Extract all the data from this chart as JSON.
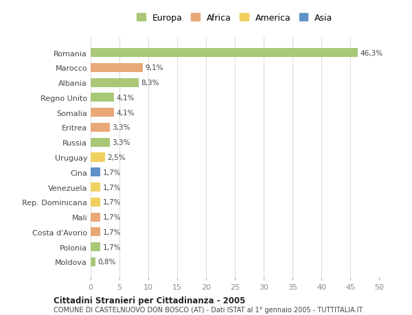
{
  "categories": [
    "Moldova",
    "Polonia",
    "Costa d'Avorio",
    "Mali",
    "Rep. Dominicana",
    "Venezuela",
    "Cina",
    "Uruguay",
    "Russia",
    "Eritrea",
    "Somalia",
    "Regno Unito",
    "Albania",
    "Marocco",
    "Romania"
  ],
  "values": [
    0.8,
    1.7,
    1.7,
    1.7,
    1.7,
    1.7,
    1.7,
    2.5,
    3.3,
    3.3,
    4.1,
    4.1,
    8.3,
    9.1,
    46.3
  ],
  "labels": [
    "0,8%",
    "1,7%",
    "1,7%",
    "1,7%",
    "1,7%",
    "1,7%",
    "1,7%",
    "2,5%",
    "3,3%",
    "3,3%",
    "4,1%",
    "4,1%",
    "8,3%",
    "9,1%",
    "46,3%"
  ],
  "continents": [
    "Europa",
    "Europa",
    "Africa",
    "Africa",
    "America",
    "America",
    "Asia",
    "America",
    "Europa",
    "Africa",
    "Africa",
    "Europa",
    "Europa",
    "Africa",
    "Europa"
  ],
  "colors": {
    "Europa": "#a8c878",
    "Africa": "#e8a878",
    "America": "#f0d060",
    "Asia": "#6090c8"
  },
  "legend_order": [
    "Europa",
    "Africa",
    "America",
    "Asia"
  ],
  "title1": "Cittadini Stranieri per Cittadinanza - 2005",
  "title2": "COMUNE DI CASTELNUOVO DON BOSCO (AT) - Dati ISTAT al 1° gennaio 2005 - TUTTITALIA.IT",
  "xlim": [
    0,
    50
  ],
  "xticks": [
    0,
    5,
    10,
    15,
    20,
    25,
    30,
    35,
    40,
    45,
    50
  ],
  "background_color": "#ffffff",
  "grid_color": "#dddddd",
  "bar_height": 0.6
}
